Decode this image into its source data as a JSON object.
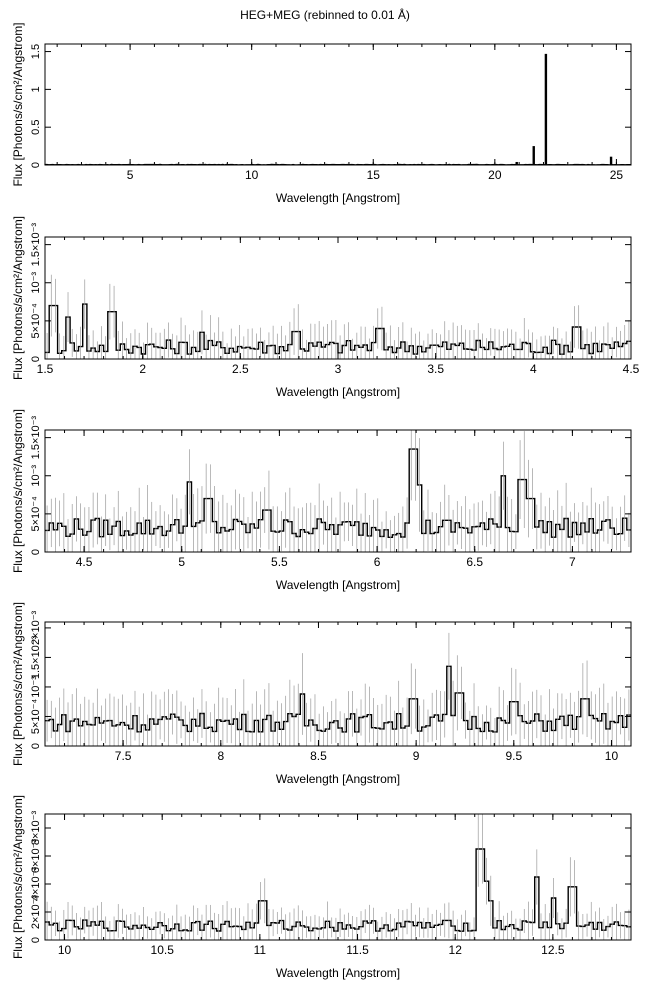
{
  "title": "HEG+MEG (rebinned to 0.01 Å)",
  "colors": {
    "frame": "#000000",
    "data": "#000000",
    "errorbar": "#9a9a9a",
    "background": "#ffffff"
  },
  "chart_data": [
    {
      "type": "line",
      "xlabel": "Wavelength [Angstrom]",
      "ylabel": "Flux [Photons/s/cm²/Angstrom]",
      "xlim": [
        1.5,
        25.6
      ],
      "ylim": [
        0,
        1.6
      ],
      "xticks": [
        5,
        10,
        15,
        20,
        25
      ],
      "xtick_labels": [
        "5",
        "10",
        "15",
        "20",
        "25"
      ],
      "yticks": [
        0,
        0.5,
        1,
        1.5
      ],
      "ytick_labels": [
        "0",
        "0.5",
        "1",
        "1.5"
      ],
      "y_exponent": "",
      "baseline": 0.003,
      "lines": [
        {
          "x": 22.1,
          "y": 0.015
        },
        {
          "x": 24.78,
          "y": 0.012
        },
        {
          "x": 17.75,
          "y": 0.01
        },
        {
          "x": 19.0,
          "y": 0.015
        },
        {
          "x": 20.9,
          "y": 0.04
        },
        {
          "x": 21.6,
          "y": 0.25
        },
        {
          "x": 22.1,
          "y": 1.47
        },
        {
          "x": 24.78,
          "y": 0.11
        }
      ],
      "series": [
        {
          "name": "",
          "x": [],
          "y": []
        }
      ]
    },
    {
      "type": "line",
      "xlabel": "Wavelength [Angstrom]",
      "ylabel": "Flux [Photons/s/cm²/Angstrom]",
      "xlim": [
        1.5,
        4.5
      ],
      "ylim": [
        0,
        0.0016
      ],
      "xticks": [
        1.5,
        2,
        2.5,
        3,
        3.5,
        4,
        4.5
      ],
      "xtick_labels": [
        "1.5",
        "2",
        "2.5",
        "3",
        "3.5",
        "4",
        "4.5"
      ],
      "yticks": [
        0,
        0.0005,
        0.001,
        0.0015
      ],
      "ytick_labels": [
        "0",
        "5×10⁻⁴",
        "10⁻³",
        "1.5×10⁻³"
      ],
      "y_exponent": "",
      "base_level": 0.00013,
      "noise_amplitude": 0.00012,
      "lines": [
        {
          "x": 1.54,
          "y": 0.0007
        },
        {
          "x": 1.62,
          "y": 0.00055
        },
        {
          "x": 1.7,
          "y": 0.00072
        },
        {
          "x": 1.84,
          "y": 0.00062
        },
        {
          "x": 2.3,
          "y": 0.00035
        },
        {
          "x": 2.78,
          "y": 0.00036
        },
        {
          "x": 3.22,
          "y": 0.0004
        },
        {
          "x": 4.22,
          "y": 0.00042
        }
      ],
      "series": [
        {
          "name": "",
          "x": [],
          "y": []
        }
      ]
    },
    {
      "type": "line",
      "xlabel": "Wavelength [Angstrom]",
      "ylabel": "Flux [Photons/s/cm²/Angstrom]",
      "xlim": [
        4.3,
        7.3
      ],
      "ylim": [
        0,
        0.0016
      ],
      "xticks": [
        4.5,
        5,
        5.5,
        6,
        6.5,
        7
      ],
      "xtick_labels": [
        "4.5",
        "5",
        "5.5",
        "6",
        "6.5",
        "7"
      ],
      "yticks": [
        0,
        0.0005,
        0.001,
        0.0015
      ],
      "ytick_labels": [
        "0",
        "5×10⁻⁴",
        "10⁻³",
        "1.5×10⁻³"
      ],
      "y_exponent": "",
      "base_level": 0.00028,
      "noise_amplitude": 0.00016,
      "lines": [
        {
          "x": 5.04,
          "y": 0.00092
        },
        {
          "x": 5.14,
          "y": 0.0007
        },
        {
          "x": 5.44,
          "y": 0.00055
        },
        {
          "x": 6.18,
          "y": 0.00135
        },
        {
          "x": 6.21,
          "y": 0.00088
        },
        {
          "x": 6.65,
          "y": 0.001
        },
        {
          "x": 6.74,
          "y": 0.00095
        },
        {
          "x": 6.78,
          "y": 0.0007
        }
      ],
      "series": [
        {
          "name": "",
          "x": [],
          "y": []
        }
      ]
    },
    {
      "type": "line",
      "xlabel": "Wavelength [Angstrom]",
      "ylabel": "Flux [Photons/s/cm²/Angstrom]",
      "xlim": [
        7.1,
        10.1
      ],
      "ylim": [
        0,
        0.0021
      ],
      "xticks": [
        7.5,
        8,
        8.5,
        9,
        9.5,
        10
      ],
      "xtick_labels": [
        "7.5",
        "8",
        "8.5",
        "9",
        "9.5",
        "10"
      ],
      "yticks": [
        0,
        0.0005,
        0.001,
        0.0015,
        0.002
      ],
      "ytick_labels": [
        "0",
        "5×10⁻⁴",
        "10⁻³",
        "1.5×10⁻³",
        "2×10⁻³"
      ],
      "y_exponent": "",
      "base_level": 0.00035,
      "noise_amplitude": 0.0002,
      "lines": [
        {
          "x": 8.42,
          "y": 0.00088
        },
        {
          "x": 9.17,
          "y": 0.00135
        },
        {
          "x": 9.22,
          "y": 0.0009
        },
        {
          "x": 8.98,
          "y": 0.0008
        },
        {
          "x": 9.5,
          "y": 0.00075
        },
        {
          "x": 9.86,
          "y": 0.0008
        }
      ],
      "series": [
        {
          "name": "",
          "x": [],
          "y": []
        }
      ]
    },
    {
      "type": "line",
      "xlabel": "Wavelength [Angstrom]",
      "ylabel": "Flux [Photons/s/cm²/Angstrom]",
      "xlim": [
        9.9,
        12.9
      ],
      "ylim": [
        0,
        0.009
      ],
      "xticks": [
        10,
        10.5,
        11,
        11.5,
        12,
        12.5
      ],
      "xtick_labels": [
        "10",
        "10.5",
        "11",
        "11.5",
        "12",
        "12.5"
      ],
      "yticks": [
        0,
        0.002,
        0.004,
        0.006,
        0.008
      ],
      "ytick_labels": [
        "0",
        "2×10⁻³",
        "4×10⁻³",
        "6×10⁻³",
        "8×10⁻³"
      ],
      "y_exponent": "",
      "base_level": 0.0009,
      "noise_amplitude": 0.0005,
      "lines": [
        {
          "x": 11.02,
          "y": 0.0028
        },
        {
          "x": 12.13,
          "y": 0.0065
        },
        {
          "x": 12.16,
          "y": 0.0042
        },
        {
          "x": 12.18,
          "y": 0.0028
        },
        {
          "x": 12.42,
          "y": 0.0045
        },
        {
          "x": 12.5,
          "y": 0.003
        },
        {
          "x": 12.6,
          "y": 0.0038
        }
      ],
      "series": [
        {
          "name": "",
          "x": [],
          "y": []
        }
      ]
    }
  ]
}
